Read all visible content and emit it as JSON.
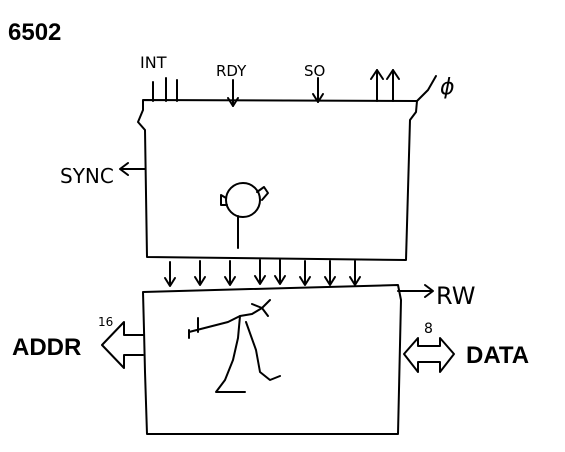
{
  "title": "6502",
  "labels": {
    "int": "INT",
    "rdy": "RDY",
    "so": "SO",
    "phi": "ϕ",
    "sync": "SYNC",
    "rw": "RW",
    "addr": "ADDR",
    "addr_width": "16",
    "data": "DATA",
    "data_width": "8"
  },
  "colors": {
    "ink": "#000000",
    "background": "#ffffff"
  }
}
